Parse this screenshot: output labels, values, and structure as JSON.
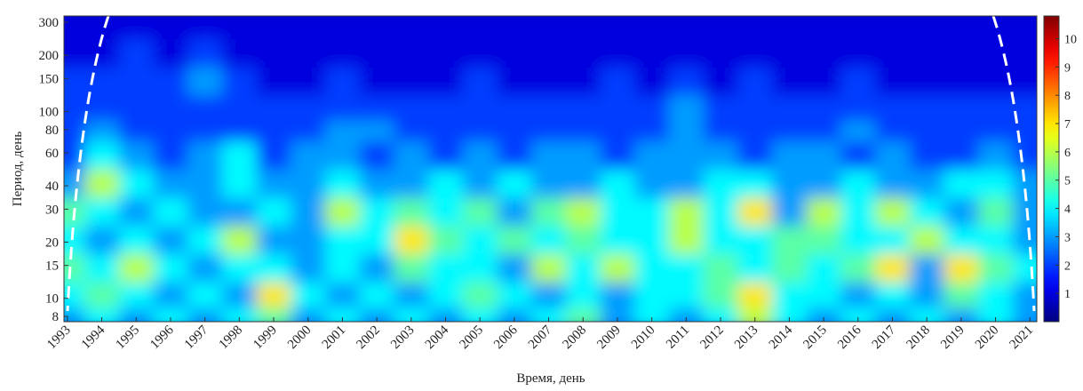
{
  "chart_data": {
    "type": "heatmap",
    "x_label": "Время, день",
    "y_label": "Период, день",
    "y_log": true,
    "colormap": "jet",
    "xlim": [
      1992.9,
      2021.2
    ],
    "xticks": [
      1993,
      1994,
      1995,
      1996,
      1997,
      1998,
      1999,
      2000,
      2001,
      2002,
      2003,
      2004,
      2005,
      2006,
      2007,
      2008,
      2009,
      2010,
      2011,
      2012,
      2013,
      2014,
      2015,
      2016,
      2017,
      2018,
      2019,
      2020,
      2021
    ],
    "ylim": [
      7.5,
      324
    ],
    "yticks": [
      8,
      10,
      15,
      20,
      30,
      40,
      60,
      80,
      100,
      150,
      200,
      300
    ],
    "clim": [
      0,
      10.8
    ],
    "cticks": [
      1,
      2,
      3,
      4,
      5,
      6,
      7,
      8,
      9,
      10
    ],
    "z": [
      [
        3,
        4,
        3,
        4,
        3,
        4,
        5,
        3,
        4,
        3,
        4,
        3,
        4,
        3,
        4,
        5,
        3,
        4,
        3,
        4,
        6,
        4,
        3,
        4,
        3,
        4,
        3,
        4,
        3
      ],
      [
        4,
        5,
        4,
        3,
        4,
        3,
        7,
        4,
        3,
        4,
        3,
        4,
        5,
        4,
        3,
        4,
        3,
        4,
        4,
        5,
        7,
        4,
        4,
        3,
        4,
        3,
        5,
        4,
        3
      ],
      [
        5,
        4,
        6,
        4,
        3,
        4,
        4,
        3,
        4,
        3,
        5,
        4,
        4,
        3,
        6,
        4,
        6,
        4,
        4,
        5,
        4,
        5,
        4,
        5,
        7,
        3,
        7,
        5,
        4
      ],
      [
        4,
        3,
        4,
        3,
        4,
        6,
        3,
        3,
        4,
        4,
        7,
        5,
        4,
        5,
        4,
        5,
        4,
        4,
        6,
        4,
        4,
        5,
        5,
        4,
        4,
        6,
        4,
        4,
        3
      ],
      [
        5,
        4,
        3,
        4,
        3,
        3,
        4,
        3,
        6,
        4,
        5,
        4,
        5,
        3,
        5,
        6,
        4,
        4,
        6,
        4,
        7,
        3,
        6,
        4,
        6,
        4,
        3,
        5,
        3
      ],
      [
        3,
        6,
        4,
        3,
        3,
        4,
        3,
        3,
        4,
        3,
        3,
        4,
        3,
        4,
        3,
        3,
        4,
        3,
        3,
        4,
        4,
        3,
        3,
        4,
        3,
        3,
        4,
        4,
        3
      ],
      [
        2,
        4,
        3,
        2,
        3,
        4,
        2,
        3,
        3,
        2,
        3,
        2,
        3,
        2,
        3,
        3,
        2,
        3,
        3,
        3,
        2,
        3,
        3,
        2,
        3,
        2,
        2,
        3,
        2
      ],
      [
        2,
        3,
        2,
        2,
        2,
        2,
        2,
        2,
        3,
        3,
        2,
        2,
        2,
        2,
        2,
        2,
        2,
        2,
        3,
        2,
        2,
        2,
        2,
        3,
        2,
        2,
        2,
        2,
        2
      ],
      [
        2,
        2,
        2,
        2,
        2,
        2,
        2,
        2,
        2,
        2,
        2,
        2,
        2,
        2,
        2,
        2,
        2,
        2,
        3,
        2,
        2,
        2,
        2,
        2,
        2,
        2,
        2,
        2,
        2
      ],
      [
        2,
        2,
        2,
        2,
        3,
        2,
        1,
        1,
        2,
        1,
        1,
        1,
        2,
        1,
        1,
        1,
        2,
        1,
        2,
        1,
        2,
        1,
        1,
        2,
        1,
        1,
        1,
        1,
        1
      ],
      [
        1,
        1,
        2,
        1,
        2,
        1,
        1,
        1,
        1,
        1,
        1,
        1,
        1,
        1,
        1,
        1,
        1,
        1,
        1,
        1,
        1,
        1,
        1,
        1,
        1,
        1,
        1,
        1,
        1
      ],
      [
        1,
        1,
        1,
        1,
        1,
        1,
        1,
        1,
        1,
        1,
        1,
        1,
        1,
        1,
        1,
        1,
        1,
        1,
        1,
        1,
        1,
        1,
        1,
        1,
        1,
        1,
        1,
        1,
        1
      ]
    ]
  }
}
